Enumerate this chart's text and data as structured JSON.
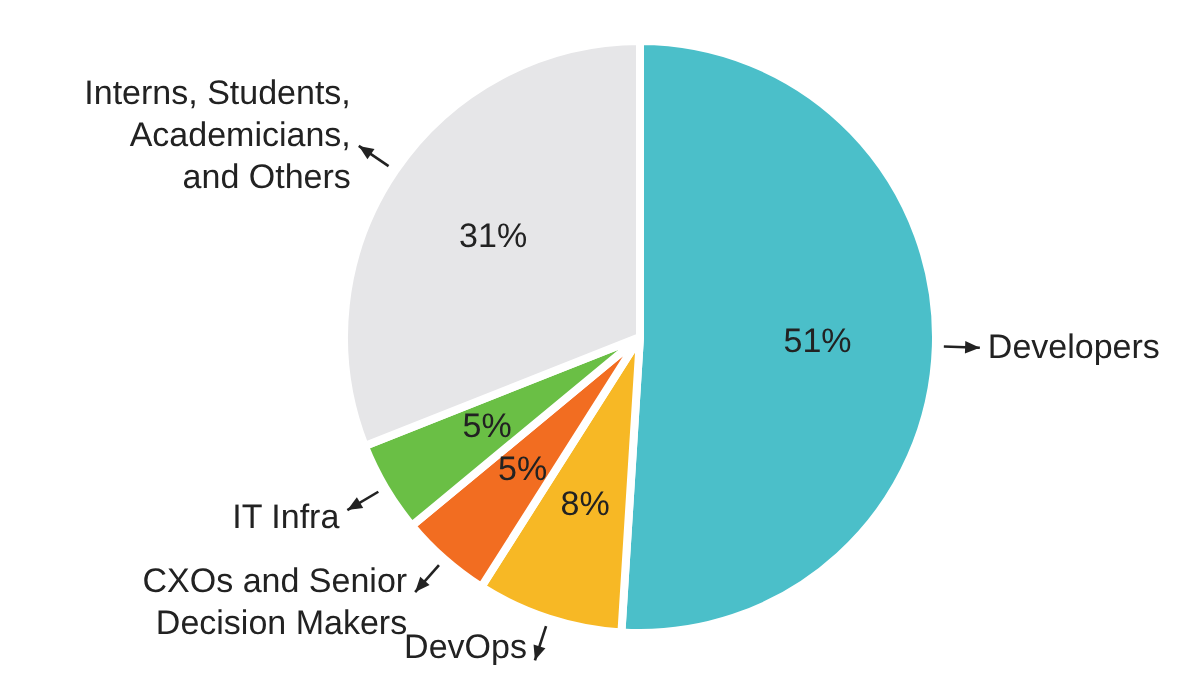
{
  "chart_data": {
    "type": "pie",
    "categories": [
      "Developers",
      "DevOps",
      "CXOs and Senior Decision Makers",
      "IT Infra",
      "Interns, Students, Academicians, and Others"
    ],
    "values": [
      51,
      8,
      5,
      5,
      31
    ],
    "value_labels": [
      "51%",
      "8%",
      "5%",
      "5%",
      "31%"
    ],
    "colors": [
      "#4bbfc9",
      "#f7b825",
      "#f26d21",
      "#6abf45",
      "#e6e6e8"
    ],
    "legend": false
  }
}
